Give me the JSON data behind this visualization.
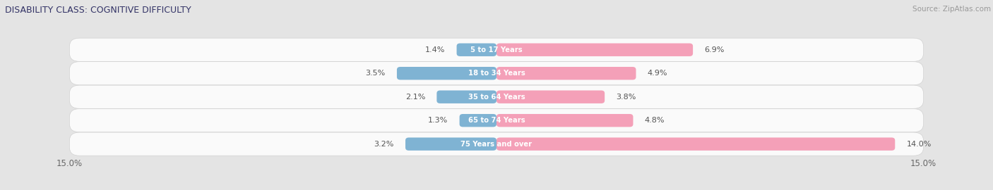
{
  "title": "DISABILITY CLASS: COGNITIVE DIFFICULTY",
  "source": "Source: ZipAtlas.com",
  "categories": [
    "5 to 17 Years",
    "18 to 34 Years",
    "35 to 64 Years",
    "65 to 74 Years",
    "75 Years and over"
  ],
  "male_values": [
    1.4,
    3.5,
    2.1,
    1.3,
    3.2
  ],
  "female_values": [
    6.9,
    4.9,
    3.8,
    4.8,
    14.0
  ],
  "max_val": 15.0,
  "male_color": "#7fb3d3",
  "female_color": "#f4a0b8",
  "bg_color": "#e4e4e4",
  "row_bg_color": "#efefef",
  "label_color": "#666666",
  "title_color": "#333366",
  "source_color": "#999999",
  "legend_label_color": "#555555",
  "bar_label_color": "#555555"
}
